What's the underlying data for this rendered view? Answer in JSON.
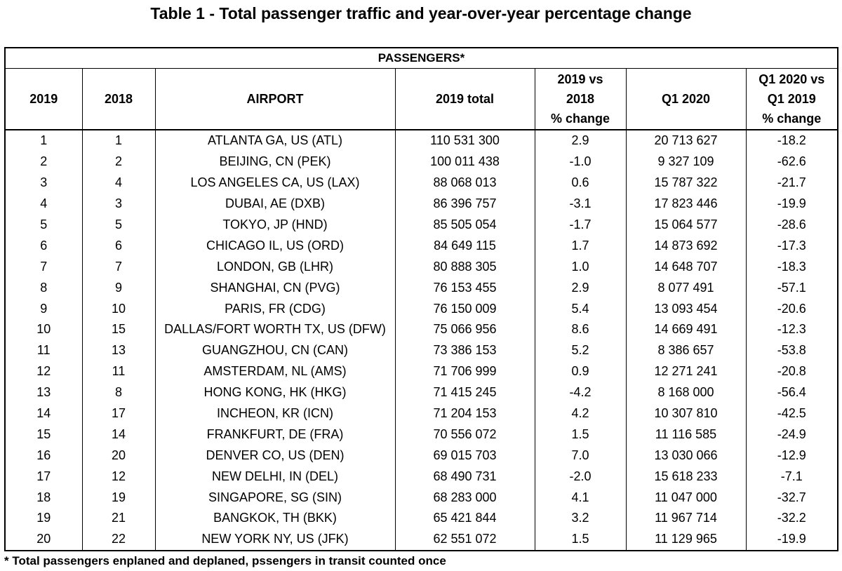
{
  "title": "Table 1 - Total passenger traffic and year-over-year percentage change",
  "group_header": "PASSENGERS*",
  "columns": {
    "rank_2019": "2019",
    "rank_2018": "2018",
    "airport": "AIRPORT",
    "total_2019": "2019 total",
    "change_2019_l1": "2019 vs",
    "change_2019_l2": "2018",
    "change_2019_l3": "% change",
    "q1_2020": "Q1 2020",
    "change_q1_l1": "Q1 2020 vs",
    "change_q1_l2": "Q1 2019",
    "change_q1_l3": "% change"
  },
  "rows": [
    {
      "r2019": "1",
      "r2018": "1",
      "airport": "ATLANTA GA, US (ATL)",
      "total": "110 531 300",
      "chg": "2.9",
      "q1": "20 713 627",
      "q1chg": "-18.2"
    },
    {
      "r2019": "2",
      "r2018": "2",
      "airport": "BEIJING, CN (PEK)",
      "total": "100 011 438",
      "chg": "-1.0",
      "q1": "9 327 109",
      "q1chg": "-62.6"
    },
    {
      "r2019": "3",
      "r2018": "4",
      "airport": "LOS ANGELES CA, US (LAX)",
      "total": "88 068 013",
      "chg": "0.6",
      "q1": "15 787 322",
      "q1chg": "-21.7"
    },
    {
      "r2019": "4",
      "r2018": "3",
      "airport": "DUBAI, AE (DXB)",
      "total": "86 396 757",
      "chg": "-3.1",
      "q1": "17 823 446",
      "q1chg": "-19.9"
    },
    {
      "r2019": "5",
      "r2018": "5",
      "airport": "TOKYO, JP (HND)",
      "total": "85 505 054",
      "chg": "-1.7",
      "q1": "15 064 577",
      "q1chg": "-28.6"
    },
    {
      "r2019": "6",
      "r2018": "6",
      "airport": "CHICAGO IL, US (ORD)",
      "total": "84 649 115",
      "chg": "1.7",
      "q1": "14 873 692",
      "q1chg": "-17.3"
    },
    {
      "r2019": "7",
      "r2018": "7",
      "airport": "LONDON, GB (LHR)",
      "total": "80 888 305",
      "chg": "1.0",
      "q1": "14 648 707",
      "q1chg": "-18.3"
    },
    {
      "r2019": "8",
      "r2018": "9",
      "airport": "SHANGHAI, CN (PVG)",
      "total": "76 153 455",
      "chg": "2.9",
      "q1": "8 077 491",
      "q1chg": "-57.1"
    },
    {
      "r2019": "9",
      "r2018": "10",
      "airport": "PARIS, FR (CDG)",
      "total": "76 150 009",
      "chg": "5.4",
      "q1": "13 093 454",
      "q1chg": "-20.6"
    },
    {
      "r2019": "10",
      "r2018": "15",
      "airport": "DALLAS/FORT WORTH TX, US (DFW)",
      "total": "75 066 956",
      "chg": "8.6",
      "q1": "14 669 491",
      "q1chg": "-12.3"
    },
    {
      "r2019": "11",
      "r2018": "13",
      "airport": "GUANGZHOU, CN (CAN)",
      "total": "73 386 153",
      "chg": "5.2",
      "q1": "8 386 657",
      "q1chg": "-53.8"
    },
    {
      "r2019": "12",
      "r2018": "11",
      "airport": "AMSTERDAM, NL (AMS)",
      "total": "71 706 999",
      "chg": "0.9",
      "q1": "12 271 241",
      "q1chg": "-20.8"
    },
    {
      "r2019": "13",
      "r2018": "8",
      "airport": "HONG KONG, HK (HKG)",
      "total": "71 415 245",
      "chg": "-4.2",
      "q1": "8 168 000",
      "q1chg": "-56.4"
    },
    {
      "r2019": "14",
      "r2018": "17",
      "airport": "INCHEON, KR (ICN)",
      "total": "71 204 153",
      "chg": "4.2",
      "q1": "10 307 810",
      "q1chg": "-42.5"
    },
    {
      "r2019": "15",
      "r2018": "14",
      "airport": "FRANKFURT, DE (FRA)",
      "total": "70 556 072",
      "chg": "1.5",
      "q1": "11 116 585",
      "q1chg": "-24.9"
    },
    {
      "r2019": "16",
      "r2018": "20",
      "airport": "DENVER CO, US (DEN)",
      "total": "69 015 703",
      "chg": "7.0",
      "q1": "13 030 066",
      "q1chg": "-12.9"
    },
    {
      "r2019": "17",
      "r2018": "12",
      "airport": "NEW DELHI, IN (DEL)",
      "total": "68 490 731",
      "chg": "-2.0",
      "q1": "15 618 233",
      "q1chg": "-7.1"
    },
    {
      "r2019": "18",
      "r2018": "19",
      "airport": "SINGAPORE, SG (SIN)",
      "total": "68 283 000",
      "chg": "4.1",
      "q1": "11 047 000",
      "q1chg": "-32.7"
    },
    {
      "r2019": "19",
      "r2018": "21",
      "airport": "BANGKOK, TH (BKK)",
      "total": "65 421 844",
      "chg": "3.2",
      "q1": "11 967 714",
      "q1chg": "-32.2"
    },
    {
      "r2019": "20",
      "r2018": "22",
      "airport": "NEW YORK NY, US (JFK)",
      "total": "62 551 072",
      "chg": "1.5",
      "q1": "11 129 965",
      "q1chg": "-19.9"
    }
  ],
  "footnote": "* Total passengers enplaned and deplaned, pssengers in transit counted once"
}
